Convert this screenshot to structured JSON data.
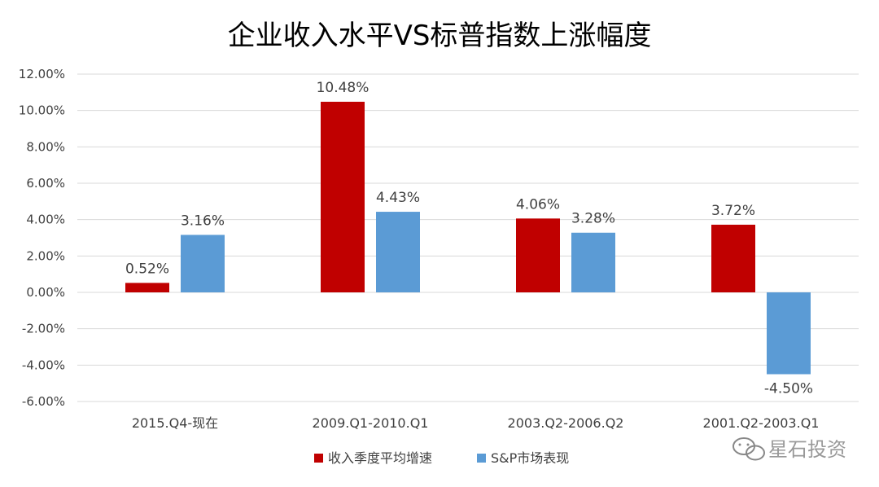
{
  "chart_data": {
    "type": "bar",
    "title": "企业收入水平VS标普指数上涨幅度",
    "categories": [
      "2015.Q4-现在",
      "2009.Q1-2010.Q1",
      "2003.Q2-2006.Q2",
      "2001.Q2-2003.Q1"
    ],
    "series": [
      {
        "name": "收入季度平均增速",
        "color": "#c00000",
        "values": [
          0.52,
          10.48,
          4.06,
          3.72
        ]
      },
      {
        "name": "S&P市场表现",
        "color": "#5b9bd5",
        "values": [
          3.16,
          4.43,
          3.28,
          -4.5
        ]
      }
    ],
    "ylim": [
      -6,
      12
    ],
    "ytick_step": 2,
    "ytick_labels": [
      "-6.00%",
      "-4.00%",
      "-2.00%",
      "0.00%",
      "2.00%",
      "4.00%",
      "6.00%",
      "8.00%",
      "10.00%",
      "12.00%"
    ],
    "data_labels": [
      [
        "0.52%",
        "10.48%",
        "4.06%",
        "3.72%"
      ],
      [
        "3.16%",
        "4.43%",
        "3.28%",
        "-4.50%"
      ]
    ],
    "grid": true,
    "legend_position": "bottom-center",
    "gridline_color": "#d9d9d9",
    "text_color": "#404040"
  },
  "watermark": {
    "text": "星石投资",
    "icon": "wechat-icon"
  }
}
